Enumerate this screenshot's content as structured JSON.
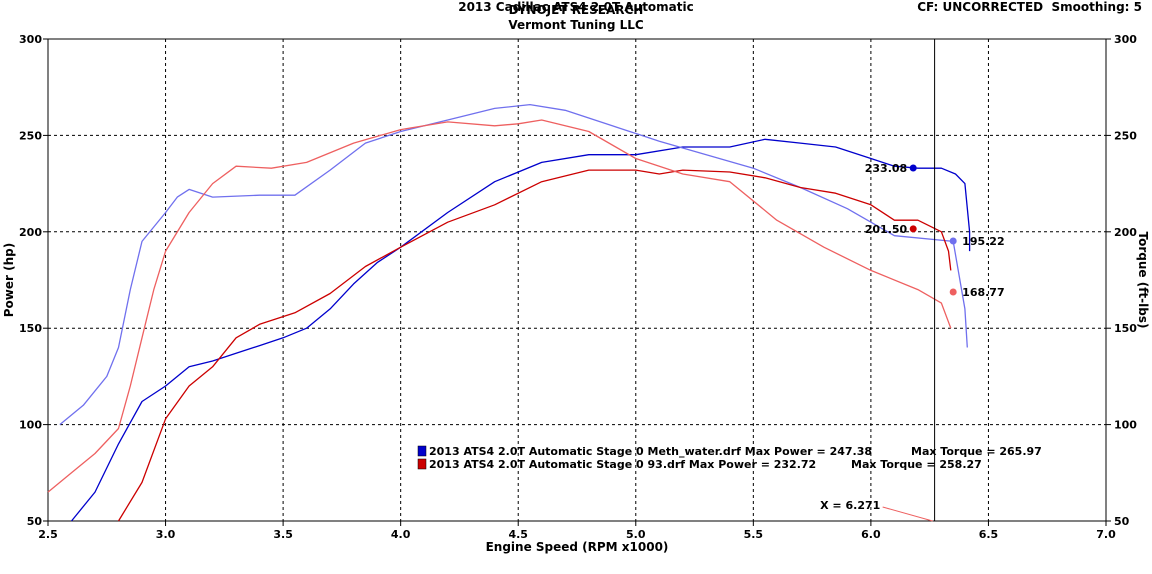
{
  "header": {
    "title": "DYNOJET RESEARCH",
    "subtitle": "Vermont Tuning LLC",
    "cf_label": "CF: UNCORRECTED",
    "smoothing_label": "Smoothing: 5"
  },
  "footer": {
    "vehicle": "2013 Cadillac ATS4 2.0T Automatic"
  },
  "colors": {
    "run1_power": "#0000cc",
    "run1_torque": "#7070ee",
    "run2_power": "#cc0000",
    "run2_torque": "#ee6060",
    "grid": "#000000"
  },
  "chart_data": {
    "type": "line",
    "xlabel": "Engine Speed (RPM x1000)",
    "ylabel": "Power (hp)",
    "y2label": "Torque (ft-lbs)",
    "xlim": [
      2.5,
      7.0
    ],
    "ylim": [
      50,
      300
    ],
    "y2lim": [
      50,
      300
    ],
    "xticks": [
      "2.5",
      "3.0",
      "3.5",
      "4.0",
      "4.5",
      "5.0",
      "5.5",
      "6.0",
      "6.5",
      "7.0"
    ],
    "yticks": [
      "50",
      "100",
      "150",
      "200",
      "250",
      "300"
    ],
    "grid": true,
    "cursor": {
      "x": 6.271,
      "label": "X = 6.271"
    },
    "legend": [
      {
        "label": "2013 ATS4 2.0T Automatic Stage 0 Meth_water.drf Max Power = 247.38",
        "torque_label": "Max Torque = 265.97",
        "color": "#0000cc"
      },
      {
        "label": "2013 ATS4 2.0T Automatic Stage 0 93.drf Max Power = 232.72",
        "torque_label": "Max Torque = 258.27",
        "color": "#cc0000"
      }
    ],
    "markers": [
      {
        "series": "meth_power",
        "x": 6.18,
        "y": 233.08,
        "label": "233.08",
        "side": "left"
      },
      {
        "series": "93_power",
        "x": 6.18,
        "y": 201.5,
        "label": "201.50",
        "side": "left"
      },
      {
        "series": "meth_torque",
        "x": 6.35,
        "y": 195.22,
        "label": "195.22",
        "side": "right"
      },
      {
        "series": "93_torque",
        "x": 6.35,
        "y": 168.77,
        "label": "168.77",
        "side": "right"
      }
    ],
    "series": [
      {
        "name": "Meth_water Power",
        "key": "meth_power",
        "axis": "left",
        "color": "#0000cc",
        "x": [
          2.6,
          2.7,
          2.8,
          2.9,
          3.0,
          3.1,
          3.2,
          3.3,
          3.4,
          3.5,
          3.6,
          3.7,
          3.8,
          3.9,
          4.0,
          4.2,
          4.4,
          4.6,
          4.8,
          5.0,
          5.2,
          5.4,
          5.55,
          5.7,
          5.85,
          6.0,
          6.1,
          6.2,
          6.3,
          6.36,
          6.4,
          6.42,
          6.42
        ],
        "y": [
          50,
          65,
          90,
          112,
          120,
          130,
          133,
          137,
          141,
          145,
          150,
          160,
          173,
          184,
          192,
          210,
          226,
          236,
          240,
          240,
          244,
          244,
          248,
          246,
          244,
          238,
          234,
          233,
          233,
          230,
          225,
          200,
          190
        ]
      },
      {
        "name": "Meth_water Torque",
        "key": "meth_torque",
        "axis": "right",
        "color": "#7070ee",
        "x": [
          2.55,
          2.65,
          2.75,
          2.8,
          2.85,
          2.9,
          3.0,
          3.05,
          3.1,
          3.2,
          3.4,
          3.55,
          3.7,
          3.85,
          4.0,
          4.2,
          4.4,
          4.55,
          4.7,
          4.9,
          5.1,
          5.3,
          5.5,
          5.7,
          5.9,
          6.1,
          6.35,
          6.4,
          6.41
        ],
        "y": [
          100,
          110,
          125,
          140,
          170,
          195,
          210,
          218,
          222,
          218,
          219,
          219,
          232,
          246,
          252,
          258,
          264,
          266,
          263,
          255,
          247,
          240,
          233,
          223,
          212,
          198,
          195,
          160,
          140
        ]
      },
      {
        "name": "93 Power",
        "key": "93_power",
        "axis": "left",
        "color": "#cc0000",
        "x": [
          2.8,
          2.9,
          3.0,
          3.1,
          3.2,
          3.3,
          3.4,
          3.55,
          3.7,
          3.85,
          4.0,
          4.2,
          4.4,
          4.6,
          4.8,
          5.0,
          5.1,
          5.2,
          5.4,
          5.55,
          5.7,
          5.85,
          6.0,
          6.1,
          6.2,
          6.3,
          6.33,
          6.34
        ],
        "y": [
          50,
          70,
          103,
          120,
          130,
          145,
          152,
          158,
          168,
          182,
          192,
          205,
          214,
          226,
          232,
          232,
          230,
          232,
          231,
          228,
          223,
          220,
          214,
          206,
          206,
          200,
          190,
          180
        ]
      },
      {
        "name": "93 Torque",
        "key": "93_torque",
        "axis": "right",
        "color": "#ee6060",
        "x": [
          2.5,
          2.6,
          2.7,
          2.8,
          2.85,
          2.9,
          2.95,
          3.0,
          3.1,
          3.2,
          3.3,
          3.45,
          3.6,
          3.8,
          4.0,
          4.2,
          4.4,
          4.5,
          4.6,
          4.8,
          5.0,
          5.2,
          5.4,
          5.6,
          5.8,
          6.0,
          6.2,
          6.3,
          6.34
        ],
        "y": [
          65,
          75,
          85,
          98,
          120,
          145,
          170,
          190,
          210,
          225,
          234,
          233,
          236,
          246,
          253,
          257,
          255,
          256,
          258,
          252,
          238,
          230,
          226,
          206,
          192,
          180,
          170,
          163,
          150
        ]
      }
    ]
  }
}
